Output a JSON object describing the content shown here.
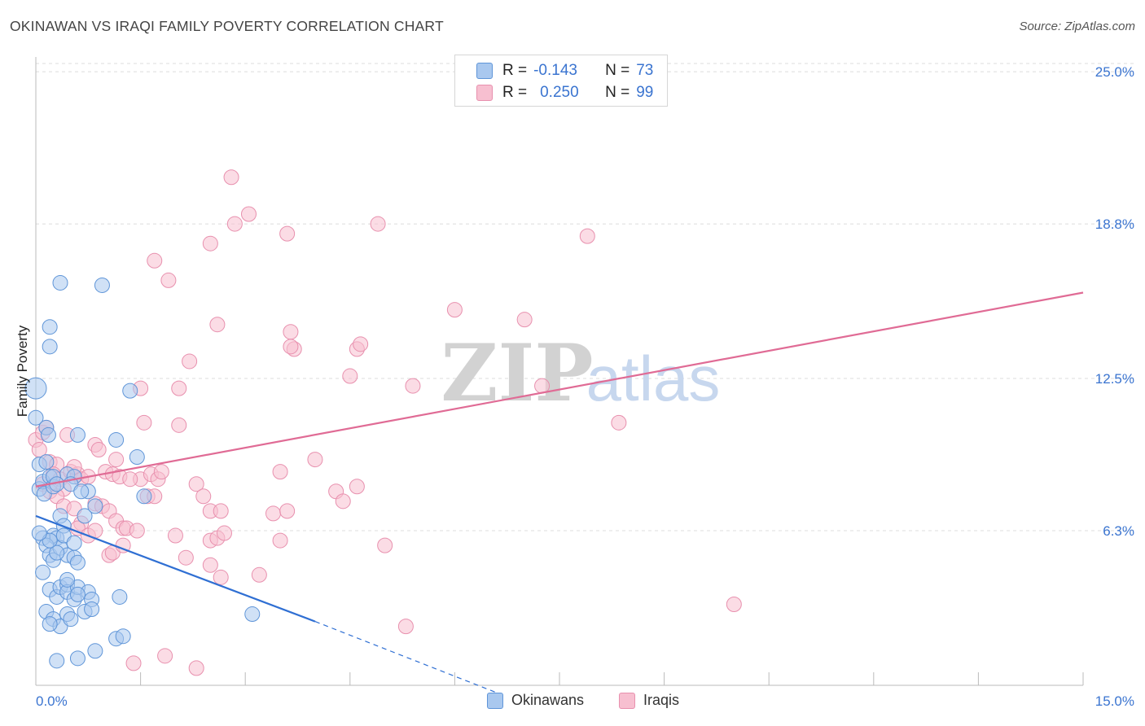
{
  "header": {
    "title": "OKINAWAN VS IRAQI FAMILY POVERTY CORRELATION CHART",
    "source": "Source: ZipAtlas.com"
  },
  "watermark": {
    "zip": "ZIP",
    "atlas": "atlas"
  },
  "legend": {
    "okinawans": {
      "r_label": "R =",
      "r_value": "-0.143",
      "n_label": "N =",
      "n_value": "73"
    },
    "iraqis": {
      "r_label": "R =",
      "r_value": "0.250",
      "n_label": "N =",
      "n_value": "99"
    }
  },
  "bottom_legend": {
    "okinawans": "Okinawans",
    "iraqis": "Iraqis"
  },
  "axes": {
    "ylabel": "Family Poverty",
    "x_min_label": "0.0%",
    "x_max_label": "15.0%",
    "y_tick_labels": [
      "25.0%",
      "18.8%",
      "12.5%",
      "6.3%"
    ]
  },
  "colors": {
    "okinawans_fill": "#a9c8ef",
    "okinawans_stroke": "#5f95d8",
    "okinawans_line": "#2f6fd3",
    "iraqis_fill": "#f7bfd0",
    "iraqis_stroke": "#e890ae",
    "iraqis_line": "#e06b95",
    "tick_text": "#3a74d0",
    "grid": "#dcdcdc"
  },
  "chart_data": {
    "type": "scatter",
    "title": "OKINAWAN VS IRAQI FAMILY POVERTY CORRELATION CHART",
    "xlabel": "",
    "ylabel": "Family Poverty",
    "xlim": [
      0,
      15
    ],
    "ylim": [
      0,
      25.6
    ],
    "y_ticks": [
      6.3,
      12.5,
      18.8,
      25.0
    ],
    "grid": true,
    "legend_placement": "top-center",
    "series": [
      {
        "name": "Okinawans",
        "r": -0.143,
        "n": 73,
        "trend": {
          "x": [
            0,
            4.0
          ],
          "y": [
            6.9,
            2.6
          ],
          "dashed_extension_to": [
            6.6,
            -0.3
          ]
        },
        "points": [
          [
            0.0,
            12.1
          ],
          [
            0.0,
            10.9
          ],
          [
            0.05,
            8.0
          ],
          [
            0.1,
            8.3
          ],
          [
            0.12,
            7.8
          ],
          [
            0.15,
            10.5
          ],
          [
            0.18,
            10.2
          ],
          [
            0.2,
            8.5
          ],
          [
            0.25,
            8.1
          ],
          [
            0.25,
            6.1
          ],
          [
            0.3,
            6.0
          ],
          [
            0.35,
            6.9
          ],
          [
            0.4,
            6.5
          ],
          [
            0.45,
            8.6
          ],
          [
            0.55,
            8.5
          ],
          [
            0.6,
            10.2
          ],
          [
            0.1,
            6.0
          ],
          [
            0.15,
            5.7
          ],
          [
            0.2,
            5.3
          ],
          [
            0.25,
            5.1
          ],
          [
            0.35,
            5.6
          ],
          [
            0.45,
            5.3
          ],
          [
            0.55,
            5.2
          ],
          [
            0.6,
            5.0
          ],
          [
            0.7,
            6.9
          ],
          [
            0.75,
            7.9
          ],
          [
            0.85,
            7.3
          ],
          [
            0.1,
            4.6
          ],
          [
            0.2,
            3.9
          ],
          [
            0.3,
            3.6
          ],
          [
            0.35,
            4.0
          ],
          [
            0.45,
            4.1
          ],
          [
            0.45,
            3.8
          ],
          [
            0.55,
            3.5
          ],
          [
            0.6,
            4.0
          ],
          [
            0.75,
            3.8
          ],
          [
            0.8,
            3.5
          ],
          [
            0.15,
            3.0
          ],
          [
            0.25,
            2.7
          ],
          [
            0.35,
            2.4
          ],
          [
            0.45,
            2.9
          ],
          [
            0.5,
            2.7
          ],
          [
            0.7,
            3.0
          ],
          [
            0.8,
            3.1
          ],
          [
            1.2,
            3.6
          ],
          [
            0.3,
            1.0
          ],
          [
            0.6,
            1.1
          ],
          [
            0.85,
            1.4
          ],
          [
            1.15,
            1.9
          ],
          [
            1.25,
            2.0
          ],
          [
            0.2,
            14.6
          ],
          [
            0.2,
            13.8
          ],
          [
            0.35,
            16.4
          ],
          [
            0.95,
            16.3
          ],
          [
            1.35,
            12.0
          ],
          [
            1.15,
            10.0
          ],
          [
            1.45,
            9.3
          ],
          [
            1.55,
            7.7
          ],
          [
            0.05,
            9.0
          ],
          [
            0.15,
            9.1
          ],
          [
            0.25,
            8.5
          ],
          [
            0.3,
            8.2
          ],
          [
            0.5,
            8.2
          ],
          [
            0.65,
            7.9
          ],
          [
            0.4,
            6.1
          ],
          [
            0.55,
            5.8
          ],
          [
            0.3,
            5.4
          ],
          [
            0.2,
            5.9
          ],
          [
            0.45,
            4.3
          ],
          [
            0.6,
            3.7
          ],
          [
            0.2,
            2.5
          ],
          [
            3.1,
            2.9
          ],
          [
            0.05,
            6.2
          ]
        ]
      },
      {
        "name": "Iraqis",
        "r": 0.25,
        "n": 99,
        "trend": {
          "x": [
            0,
            15
          ],
          "y": [
            8.1,
            16.0
          ]
        },
        "points": [
          [
            0.0,
            10.0
          ],
          [
            0.1,
            10.3
          ],
          [
            0.15,
            10.5
          ],
          [
            0.05,
            9.6
          ],
          [
            0.2,
            9.1
          ],
          [
            0.3,
            9.0
          ],
          [
            0.25,
            8.6
          ],
          [
            0.35,
            8.4
          ],
          [
            0.4,
            8.0
          ],
          [
            0.5,
            8.7
          ],
          [
            0.6,
            8.6
          ],
          [
            0.65,
            8.4
          ],
          [
            0.75,
            8.5
          ],
          [
            0.1,
            8.2
          ],
          [
            0.2,
            7.9
          ],
          [
            0.3,
            7.7
          ],
          [
            0.4,
            7.3
          ],
          [
            0.55,
            7.2
          ],
          [
            0.65,
            6.6
          ],
          [
            0.85,
            7.4
          ],
          [
            0.95,
            7.3
          ],
          [
            1.05,
            7.1
          ],
          [
            1.15,
            6.7
          ],
          [
            1.25,
            6.4
          ],
          [
            0.6,
            6.4
          ],
          [
            0.75,
            6.1
          ],
          [
            0.85,
            6.3
          ],
          [
            1.05,
            5.3
          ],
          [
            1.1,
            5.4
          ],
          [
            1.3,
            6.4
          ],
          [
            1.45,
            6.3
          ],
          [
            1.6,
            7.7
          ],
          [
            1.7,
            7.7
          ],
          [
            1.5,
            8.4
          ],
          [
            1.65,
            8.6
          ],
          [
            1.75,
            8.4
          ],
          [
            1.8,
            8.7
          ],
          [
            1.0,
            8.7
          ],
          [
            1.1,
            8.6
          ],
          [
            1.2,
            8.5
          ],
          [
            0.85,
            9.8
          ],
          [
            0.9,
            9.6
          ],
          [
            1.15,
            9.2
          ],
          [
            1.35,
            8.4
          ],
          [
            1.55,
            10.7
          ],
          [
            1.5,
            12.1
          ],
          [
            1.7,
            17.3
          ],
          [
            1.9,
            16.5
          ],
          [
            2.05,
            12.1
          ],
          [
            2.05,
            10.6
          ],
          [
            2.2,
            13.2
          ],
          [
            2.3,
            8.2
          ],
          [
            2.4,
            7.7
          ],
          [
            2.5,
            7.1
          ],
          [
            2.5,
            5.9
          ],
          [
            2.6,
            6.0
          ],
          [
            2.65,
            4.4
          ],
          [
            2.5,
            4.9
          ],
          [
            2.6,
            14.7
          ],
          [
            2.7,
            6.2
          ],
          [
            2.65,
            7.1
          ],
          [
            2.85,
            18.8
          ],
          [
            2.8,
            20.7
          ],
          [
            2.5,
            18.0
          ],
          [
            3.05,
            19.2
          ],
          [
            3.2,
            4.5
          ],
          [
            3.4,
            7.0
          ],
          [
            3.5,
            8.7
          ],
          [
            3.5,
            5.9
          ],
          [
            3.6,
            7.1
          ],
          [
            3.65,
            14.4
          ],
          [
            3.7,
            13.7
          ],
          [
            3.6,
            18.4
          ],
          [
            3.65,
            13.8
          ],
          [
            4.0,
            9.2
          ],
          [
            4.3,
            7.9
          ],
          [
            4.4,
            7.5
          ],
          [
            4.5,
            12.6
          ],
          [
            4.6,
            13.7
          ],
          [
            4.65,
            13.9
          ],
          [
            4.6,
            8.1
          ],
          [
            4.9,
            18.8
          ],
          [
            5.0,
            5.7
          ],
          [
            5.4,
            12.2
          ],
          [
            5.3,
            2.4
          ],
          [
            6.0,
            15.3
          ],
          [
            7.0,
            14.9
          ],
          [
            7.25,
            12.2
          ],
          [
            7.9,
            18.3
          ],
          [
            8.35,
            10.7
          ],
          [
            10.0,
            3.3
          ],
          [
            1.4,
            0.9
          ],
          [
            1.85,
            1.2
          ],
          [
            2.3,
            0.7
          ],
          [
            2.15,
            5.2
          ],
          [
            2.0,
            6.1
          ],
          [
            1.25,
            5.7
          ],
          [
            0.55,
            8.9
          ],
          [
            0.45,
            10.2
          ]
        ]
      }
    ]
  }
}
